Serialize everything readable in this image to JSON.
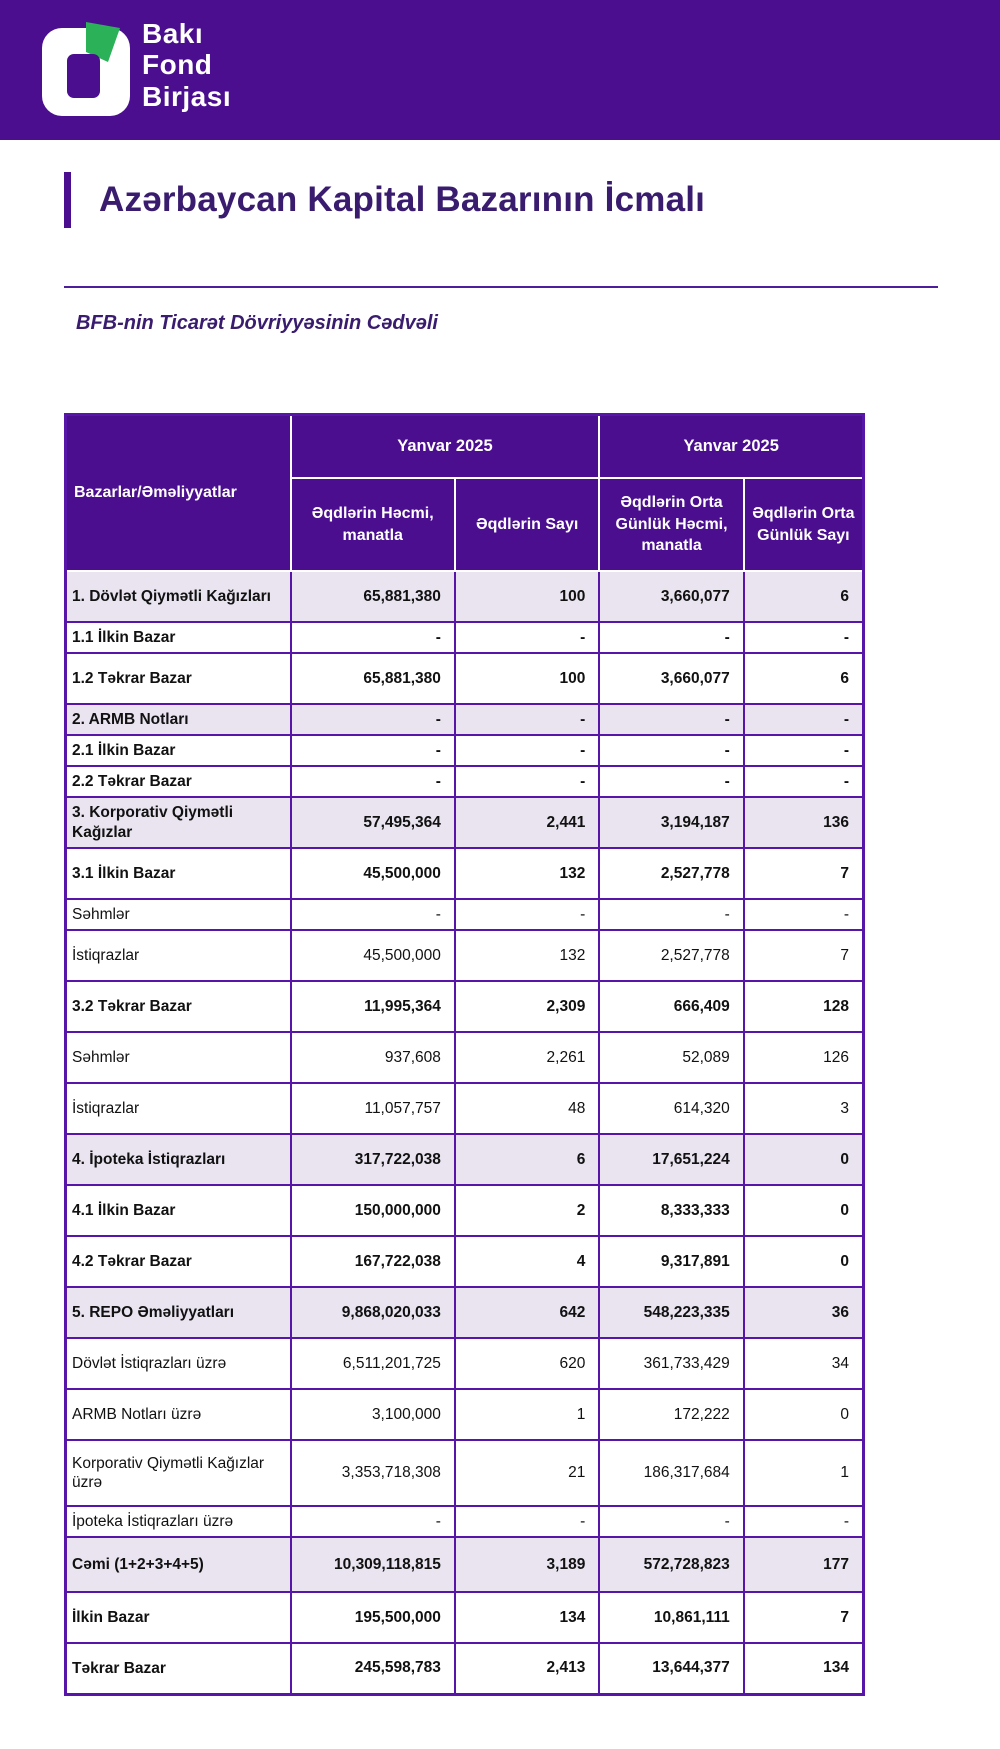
{
  "brand": {
    "lines": [
      "Bakı",
      "Fond",
      "Birjası"
    ]
  },
  "page": {
    "title": "Azərbaycan Kapital Bazarının İcmalı",
    "subtitle": "BFB-nin Ticarət Dövriyyəsinin Cədvəli"
  },
  "colors": {
    "banner_purple": "#4A0E8E",
    "border_purple": "#5716A8",
    "shaded_row": "#E9E4F0",
    "title_text": "#3A1C6E",
    "logo_green": "#2BB158"
  },
  "table": {
    "corner_header": "Bazarlar/Əməliyyatlar",
    "period_headers": [
      "Yanvar 2025",
      "Yanvar 2025"
    ],
    "column_headers": [
      "Əqdlərin Həcmi, manatla",
      "Əqdlərin Sayı",
      "Əqdlərin Orta Günlük Həcmi, manatla",
      "Əqdlərin Orta Günlük Sayı"
    ],
    "rows": [
      {
        "label": "1. Dövlət Qiymətli Kağızları",
        "values": [
          "65,881,380",
          "100",
          "3,660,077",
          "6"
        ],
        "shaded": true,
        "bold": true,
        "size": "normal"
      },
      {
        "label": "1.1 İlkin Bazar",
        "values": [
          "-",
          "-",
          "-",
          "-"
        ],
        "shaded": false,
        "bold": true,
        "size": "short"
      },
      {
        "label": "1.2 Təkrar Bazar",
        "values": [
          "65,881,380",
          "100",
          "3,660,077",
          "6"
        ],
        "shaded": false,
        "bold": true,
        "size": "normal"
      },
      {
        "label": "2. ARMB Notları",
        "values": [
          "-",
          "-",
          "-",
          "-"
        ],
        "shaded": true,
        "bold": true,
        "size": "short"
      },
      {
        "label": "2.1 İlkin Bazar",
        "values": [
          "-",
          "-",
          "-",
          "-"
        ],
        "shaded": false,
        "bold": true,
        "size": "short"
      },
      {
        "label": "2.2 Təkrar Bazar",
        "values": [
          "-",
          "-",
          "-",
          "-"
        ],
        "shaded": false,
        "bold": true,
        "size": "short"
      },
      {
        "label": "3. Korporativ Qiymətli Kağızlar",
        "values": [
          "57,495,364",
          "2,441",
          "3,194,187",
          "136"
        ],
        "shaded": true,
        "bold": true,
        "size": "normal"
      },
      {
        "label": "3.1 İlkin Bazar",
        "values": [
          "45,500,000",
          "132",
          "2,527,778",
          "7"
        ],
        "shaded": false,
        "bold": true,
        "size": "normal"
      },
      {
        "label": "Səhmlər",
        "values": [
          "-",
          "-",
          "-",
          "-"
        ],
        "shaded": false,
        "bold": false,
        "size": "short"
      },
      {
        "label": "İstiqrazlar",
        "values": [
          "45,500,000",
          "132",
          "2,527,778",
          "7"
        ],
        "shaded": false,
        "bold": false,
        "size": "normal"
      },
      {
        "label": "3.2 Təkrar Bazar",
        "values": [
          "11,995,364",
          "2,309",
          "666,409",
          "128"
        ],
        "shaded": false,
        "bold": true,
        "size": "normal"
      },
      {
        "label": "Səhmlər",
        "values": [
          "937,608",
          "2,261",
          "52,089",
          "126"
        ],
        "shaded": false,
        "bold": false,
        "size": "normal"
      },
      {
        "label": "İstiqrazlar",
        "values": [
          "11,057,757",
          "48",
          "614,320",
          "3"
        ],
        "shaded": false,
        "bold": false,
        "size": "normal"
      },
      {
        "label": "4. İpoteka İstiqrazları",
        "values": [
          "317,722,038",
          "6",
          "17,651,224",
          "0"
        ],
        "shaded": true,
        "bold": true,
        "size": "normal"
      },
      {
        "label": "4.1 İlkin Bazar",
        "values": [
          "150,000,000",
          "2",
          "8,333,333",
          "0"
        ],
        "shaded": false,
        "bold": true,
        "size": "normal"
      },
      {
        "label": "4.2 Təkrar Bazar",
        "values": [
          "167,722,038",
          "4",
          "9,317,891",
          "0"
        ],
        "shaded": false,
        "bold": true,
        "size": "normal"
      },
      {
        "label": "5. REPO Əməliyyatları",
        "values": [
          "9,868,020,033",
          "642",
          "548,223,335",
          "36"
        ],
        "shaded": true,
        "bold": true,
        "size": "normal"
      },
      {
        "label": "Dövlət İstiqrazları üzrə",
        "values": [
          "6,511,201,725",
          "620",
          "361,733,429",
          "34"
        ],
        "shaded": false,
        "bold": false,
        "size": "normal"
      },
      {
        "label": "ARMB Notları üzrə",
        "values": [
          "3,100,000",
          "1",
          "172,222",
          "0"
        ],
        "shaded": false,
        "bold": false,
        "size": "normal"
      },
      {
        "label": "Korporativ Qiymətli Kağızlar üzrə",
        "values": [
          "3,353,718,308",
          "21",
          "186,317,684",
          "1"
        ],
        "shaded": false,
        "bold": false,
        "size": "xl"
      },
      {
        "label": "İpoteka İstiqrazları üzrə",
        "values": [
          "-",
          "-",
          "-",
          "-"
        ],
        "shaded": false,
        "bold": false,
        "size": "short"
      },
      {
        "label": "Cəmi (1+2+3+4+5)",
        "values": [
          "10,309,118,815",
          "3,189",
          "572,728,823",
          "177"
        ],
        "shaded": true,
        "bold": true,
        "size": "total"
      },
      {
        "label": "İlkin Bazar",
        "values": [
          "195,500,000",
          "134",
          "10,861,111",
          "7"
        ],
        "shaded": false,
        "bold": true,
        "size": "normal"
      },
      {
        "label": "Təkrar Bazar",
        "values": [
          "245,598,783",
          "2,413",
          "13,644,377",
          "134"
        ],
        "shaded": false,
        "bold": true,
        "size": "normal"
      }
    ]
  }
}
